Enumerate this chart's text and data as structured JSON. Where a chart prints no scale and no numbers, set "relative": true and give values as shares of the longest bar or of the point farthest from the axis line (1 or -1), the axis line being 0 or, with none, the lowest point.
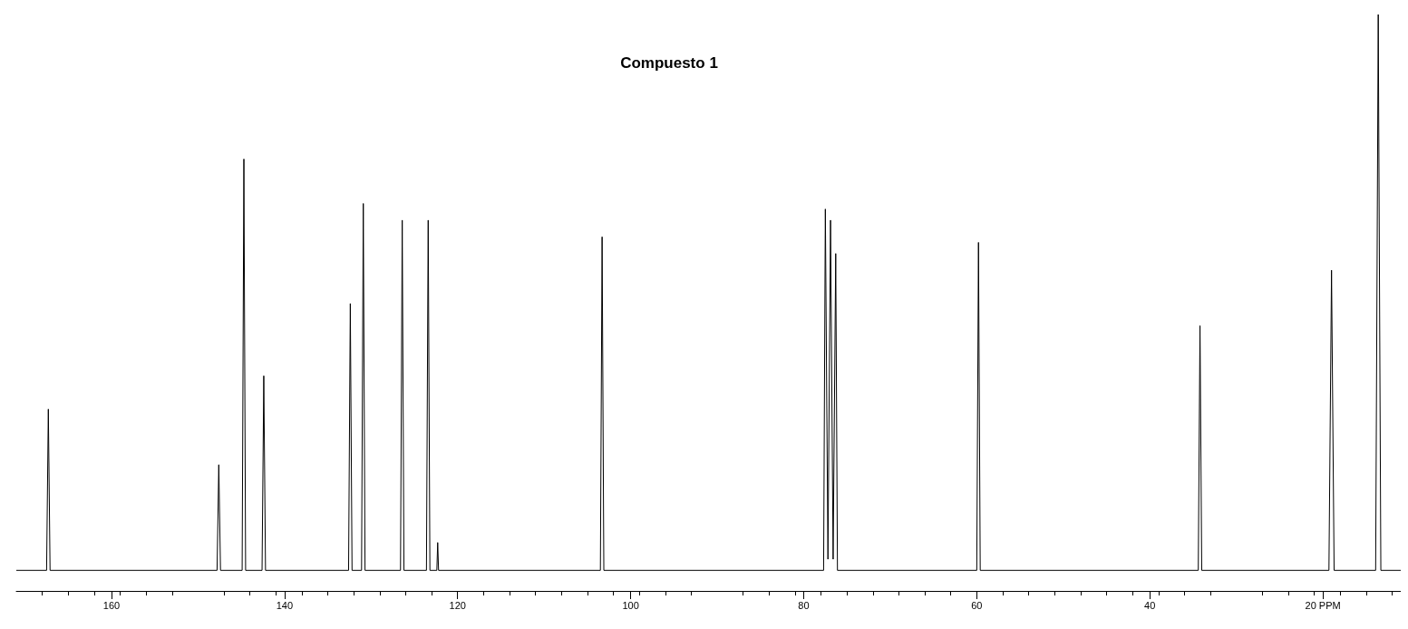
{
  "chart_data": {
    "type": "line",
    "title": "Compuesto 1",
    "relative": true,
    "color": "#000000",
    "grid": false,
    "marker": "none",
    "line_style": "solid",
    "xlim": [
      171,
      11
    ],
    "xticks": [
      160,
      140,
      120,
      100,
      80,
      60,
      40,
      {
        "value": 20,
        "label": "20 PPM"
      }
    ],
    "x": [
      171,
      167.5,
      167.3,
      167.1,
      147.8,
      147.6,
      147.4,
      144.9,
      144.7,
      144.5,
      142.6,
      142.4,
      142.2,
      132.6,
      132.4,
      132.2,
      131.1,
      130.9,
      130.7,
      126.6,
      126.4,
      126.2,
      123.6,
      123.4,
      123.2,
      122.4,
      122.3,
      122.2,
      103.5,
      103.3,
      103.1,
      77.7,
      77.5,
      77.2,
      76.9,
      76.6,
      76.3,
      76.1,
      60.0,
      59.8,
      59.6,
      34.4,
      34.2,
      34.0,
      19.3,
      19.0,
      18.7,
      13.9,
      13.6,
      13.3,
      11
    ],
    "values": [
      0,
      0,
      0.29,
      0,
      0,
      0.19,
      0,
      0,
      0.74,
      0,
      0,
      0.35,
      0,
      0,
      0.48,
      0,
      0,
      0.66,
      0,
      0,
      0.63,
      0,
      0,
      0.63,
      0,
      0,
      0.05,
      0,
      0,
      0.6,
      0,
      0,
      0.65,
      0.02,
      0.63,
      0.02,
      0.57,
      0,
      0,
      0.59,
      0,
      0,
      0.44,
      0,
      0,
      0.54,
      0,
      0,
      1,
      0,
      0
    ]
  }
}
